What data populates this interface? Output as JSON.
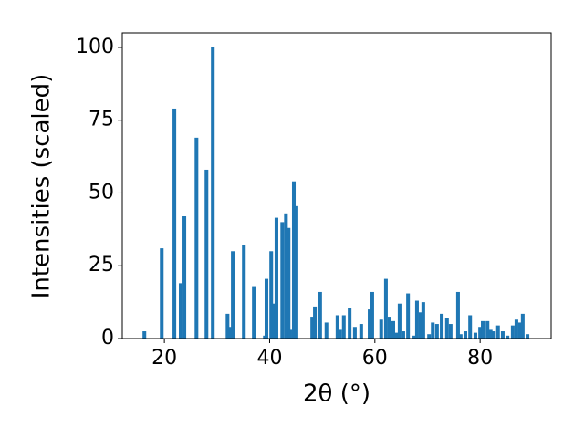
{
  "chart_data": {
    "type": "bar",
    "xlabel": "2θ (°)",
    "ylabel": "Intensities (scaled)",
    "color": "#1f77b4",
    "x": [
      16.2,
      19.5,
      21.9,
      23.1,
      23.8,
      26.1,
      28.0,
      29.2,
      32.0,
      32.5,
      33.0,
      35.1,
      37.0,
      39.1,
      39.4,
      40.3,
      40.8,
      41.3,
      42.4,
      43.1,
      43.6,
      43.9,
      44.6,
      45.1,
      48.1,
      48.6,
      49.6,
      50.8,
      52.9,
      53.4,
      54.1,
      55.2,
      56.2,
      57.4,
      59.0,
      59.5,
      61.2,
      62.1,
      62.8,
      63.5,
      64.2,
      64.7,
      65.4,
      66.3,
      67.5,
      68.0,
      68.7,
      69.2,
      70.3,
      71.0,
      71.8,
      72.7,
      73.7,
      74.4,
      75.8,
      76.3,
      77.2,
      78.1,
      79.1,
      80.0,
      80.5,
      81.4,
      82.0,
      82.6,
      83.4,
      84.3,
      85.2,
      86.2,
      86.9,
      87.6,
      88.1,
      89.0
    ],
    "values": [
      2.5,
      31,
      79,
      19,
      42,
      69,
      58,
      100,
      8.5,
      4,
      30,
      32,
      18,
      1,
      20.5,
      30,
      12,
      41.5,
      40,
      43,
      38,
      3,
      54,
      45.5,
      7.5,
      11,
      16,
      5.5,
      8,
      3,
      8,
      10.5,
      4,
      5,
      10,
      16,
      6.5,
      20.5,
      7.5,
      6,
      2,
      12,
      2.5,
      15.5,
      1,
      13,
      9,
      12.5,
      1.5,
      5.5,
      5,
      8.5,
      7,
      5,
      16,
      1.5,
      2.5,
      8,
      2,
      4,
      6,
      6,
      3,
      2.5,
      4.5,
      2.5,
      1,
      4.5,
      6.5,
      5.5,
      8.5,
      1.5
    ],
    "xlim": [
      12,
      93.5
    ],
    "ylim": [
      0,
      105
    ],
    "xticks": [
      20,
      40,
      60,
      80
    ],
    "yticks": [
      0,
      25,
      50,
      75,
      100
    ]
  }
}
